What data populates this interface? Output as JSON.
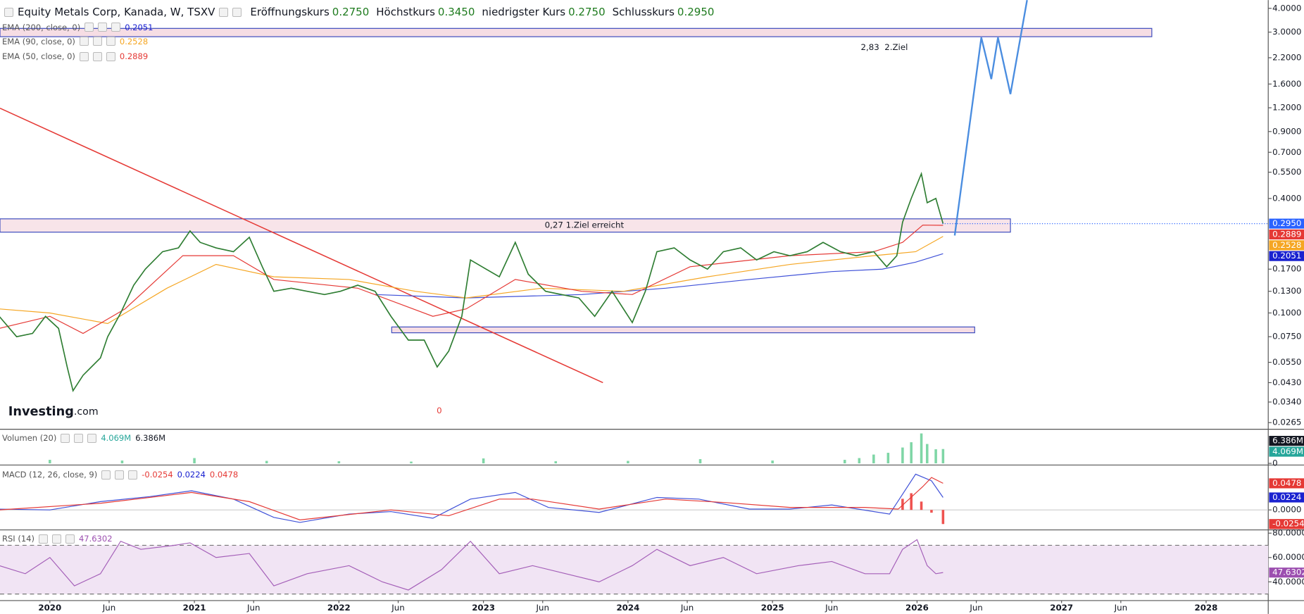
{
  "header": {
    "title": "Equity Metals Corp, Kanada, W, TSXV",
    "ohlc": [
      {
        "label": "Eröffnungskurs",
        "value": "0.2750"
      },
      {
        "label": "Höchstkurs",
        "value": "0.3450"
      },
      {
        "label": "niedrigster Kurs",
        "value": "0.2750"
      },
      {
        "label": "Schlusskurs",
        "value": "0.2950"
      }
    ],
    "logo": [
      "Investing",
      ".com"
    ]
  },
  "chart_data": [
    {
      "type": "line",
      "log_scale": true,
      "xlim": [
        2019.655,
        2028.43
      ],
      "xticks": [
        {
          "value": 2020,
          "label": "2020"
        },
        {
          "value": 2020.41,
          "label": "Jun"
        },
        {
          "value": 2021,
          "label": "2021"
        },
        {
          "value": 2021.41,
          "label": "Jun"
        },
        {
          "value": 2022,
          "label": "2022"
        },
        {
          "value": 2022.41,
          "label": "Jun"
        },
        {
          "value": 2023,
          "label": "2023"
        },
        {
          "value": 2023.41,
          "label": "Jun"
        },
        {
          "value": 2024,
          "label": "2024"
        },
        {
          "value": 2024.41,
          "label": "Jun"
        },
        {
          "value": 2025,
          "label": "2025"
        },
        {
          "value": 2025.41,
          "label": "Jun"
        },
        {
          "value": 2026,
          "label": "2026"
        },
        {
          "value": 2026.41,
          "label": "Jun"
        },
        {
          "value": 2027,
          "label": "2027"
        },
        {
          "value": 2027.41,
          "label": "Jun"
        },
        {
          "value": 2028,
          "label": "2028"
        }
      ],
      "ylim": [
        0.0247,
        4.42
      ],
      "yticks": [
        {
          "value": 4,
          "label": "4.0000"
        },
        {
          "value": 3,
          "label": "3.0000"
        },
        {
          "value": 2.2,
          "label": "2.2000"
        },
        {
          "value": 1.6,
          "label": "1.6000"
        },
        {
          "value": 1.2,
          "label": "1.2000"
        },
        {
          "value": 0.9,
          "label": "0.9000"
        },
        {
          "value": 0.7,
          "label": "0.7000"
        },
        {
          "value": 0.55,
          "label": "0.5500"
        },
        {
          "value": 0.4,
          "label": "0.4000"
        },
        {
          "value": 0.17,
          "label": "0.1700"
        },
        {
          "value": 0.13,
          "label": "0.1300"
        },
        {
          "value": 0.1,
          "label": "0.1000"
        },
        {
          "value": 0.075,
          "label": "0.0750"
        },
        {
          "value": 0.055,
          "label": "0.0550"
        },
        {
          "value": 0.043,
          "label": "0.0430"
        },
        {
          "value": 0.034,
          "label": "0.0340"
        },
        {
          "value": 0.0265,
          "label": "0.0265"
        }
      ],
      "legend": [
        {
          "title": "EMA (200, close, 0)",
          "values": [
            {
              "text": "0.2051",
              "color": "#1a22d0"
            }
          ]
        },
        {
          "title": "EMA (90, close, 0)",
          "values": [
            {
              "text": "0.2528",
              "color": "#f5a623"
            }
          ]
        },
        {
          "title": "EMA (50, close, 0)",
          "values": [
            {
              "text": "0.2889",
              "color": "#e53935"
            }
          ]
        }
      ],
      "series": [
        {
          "color": "#3f51d8",
          "x": [
            2022.25,
            2022.88,
            2023.68,
            2024.26,
            2024.84,
            2025.41,
            2025.76,
            2025.99,
            2026.18
          ],
          "values": [
            0.125,
            0.12,
            0.125,
            0.135,
            0.15,
            0.165,
            0.17,
            0.185,
            0.205
          ]
        },
        {
          "color": "#f5a623",
          "x": [
            2019.65,
            2020.0,
            2020.4,
            2020.81,
            2021.15,
            2021.55,
            2022.07,
            2022.53,
            2022.88,
            2023.4,
            2023.97,
            2024.55,
            2025.12,
            2025.7,
            2025.99,
            2026.18
          ],
          "values": [
            0.105,
            0.1,
            0.088,
            0.135,
            0.18,
            0.155,
            0.15,
            0.13,
            0.12,
            0.135,
            0.13,
            0.155,
            0.18,
            0.2,
            0.21,
            0.2528
          ]
        },
        {
          "color": "#e53935",
          "x": [
            2019.65,
            2020.0,
            2020.23,
            2020.52,
            2020.92,
            2021.27,
            2021.55,
            2022.13,
            2022.65,
            2022.88,
            2023.22,
            2023.68,
            2024.03,
            2024.43,
            2025.12,
            2025.7,
            2025.9,
            2026.04,
            2026.18
          ],
          "values": [
            0.083,
            0.096,
            0.078,
            0.105,
            0.2,
            0.2,
            0.15,
            0.135,
            0.096,
            0.105,
            0.15,
            0.13,
            0.125,
            0.175,
            0.2,
            0.21,
            0.235,
            0.29,
            0.2889
          ]
        },
        {
          "color": "#2e7d32",
          "x": [
            2019.65,
            2019.77,
            2019.88,
            2019.97,
            2020.06,
            2020.12,
            2020.16,
            2020.23,
            2020.35,
            2020.4,
            2020.49,
            2020.58,
            2020.66,
            2020.78,
            2020.89,
            2020.97,
            2021.04,
            2021.15,
            2021.27,
            2021.38,
            2021.47,
            2021.55,
            2021.67,
            2021.78,
            2021.9,
            2022.01,
            2022.13,
            2022.25,
            2022.36,
            2022.48,
            2022.59,
            2022.68,
            2022.76,
            2022.85,
            2022.91,
            2022.99,
            2023.11,
            2023.22,
            2023.31,
            2023.43,
            2023.54,
            2023.66,
            2023.77,
            2023.89,
            2024.03,
            2024.12,
            2024.2,
            2024.32,
            2024.43,
            2024.55,
            2024.66,
            2024.78,
            2024.89,
            2025.01,
            2025.12,
            2025.24,
            2025.35,
            2025.47,
            2025.58,
            2025.7,
            2025.79,
            2025.86,
            2025.9,
            2025.96,
            2026.03,
            2026.07,
            2026.13,
            2026.18
          ],
          "values": [
            0.096,
            0.075,
            0.078,
            0.096,
            0.083,
            0.052,
            0.039,
            0.047,
            0.058,
            0.075,
            0.1,
            0.14,
            0.17,
            0.21,
            0.22,
            0.27,
            0.235,
            0.22,
            0.21,
            0.25,
            0.175,
            0.13,
            0.135,
            0.13,
            0.125,
            0.13,
            0.14,
            0.13,
            0.096,
            0.072,
            0.072,
            0.052,
            0.063,
            0.096,
            0.19,
            0.175,
            0.155,
            0.235,
            0.16,
            0.13,
            0.125,
            0.12,
            0.096,
            0.13,
            0.089,
            0.13,
            0.21,
            0.22,
            0.19,
            0.17,
            0.21,
            0.22,
            0.19,
            0.21,
            0.2,
            0.21,
            0.235,
            0.21,
            0.2,
            0.21,
            0.175,
            0.2,
            0.3,
            0.4,
            0.54,
            0.38,
            0.4,
            0.295
          ]
        }
      ],
      "price_labels": [
        {
          "value": 0.295,
          "label": "0.2950",
          "color": "#2962ff",
          "dotted": true
        },
        {
          "value": 0.2889,
          "label": "0.2889",
          "color": "#e53935"
        },
        {
          "value": 0.2528,
          "label": "0.2528",
          "color": "#f5a623"
        },
        {
          "value": 0.2051,
          "label": "0.2051",
          "color": "#1a22d0"
        }
      ],
      "annotations": [
        "0,27 1.Ziel erreicht",
        "2,83  2.Ziel",
        "0"
      ]
    },
    {
      "type": "bar",
      "ylim": [
        0,
        9450000
      ],
      "yticks": [
        0
      ],
      "legend": [
        {
          "title": "Volumen (20)",
          "values": [
            {
              "text": "4.069M",
              "color": "#26a69a"
            },
            {
              "text": "6.386M",
              "color": "#131722"
            }
          ]
        }
      ],
      "series": [
        {
          "type": "bar",
          "color": "#7fd6a6",
          "x": [
            2020.0,
            2020.5,
            2021.0,
            2021.5,
            2022.0,
            2022.5,
            2023.0,
            2023.5,
            2024.0,
            2024.5,
            2025.0,
            2025.5,
            2025.6,
            2025.7,
            2025.8,
            2025.9,
            2025.96,
            2026.03,
            2026.07,
            2026.13,
            2026.18
          ],
          "values": [
            1000000,
            800000,
            1500000,
            700000,
            600000,
            500000,
            1400000,
            600000,
            700000,
            1200000,
            800000,
            1000000,
            1500000,
            2500000,
            3000000,
            4500000,
            6000000,
            8500000,
            5500000,
            4000000,
            4069000
          ]
        }
      ],
      "price_labels": [
        {
          "value": 6386000,
          "label": "6.386M",
          "color": "#131722"
        },
        {
          "value": 4069000,
          "label": "4.069M",
          "color": "#26a69a"
        }
      ]
    },
    {
      "type": "line",
      "ylim": [
        -0.0344,
        0.0792
      ],
      "yticks": [
        {
          "value": 0,
          "label": "0.0000"
        }
      ],
      "legend": [
        {
          "title": "MACD (12, 26, close, 9)",
          "values": [
            {
              "text": "-0.0254",
              "color": "#e53935"
            },
            {
              "text": "0.0224",
              "color": "#1a22d0"
            },
            {
              "text": "0.0478",
              "color": "#e53935"
            }
          ]
        }
      ],
      "series": [
        {
          "type": "bar",
          "color": "#ef5350",
          "x": [
            2025.9,
            2025.96,
            2026.03,
            2026.1,
            2026.18
          ],
          "values": [
            0.02,
            0.03,
            0.015,
            -0.005,
            -0.0254
          ]
        },
        {
          "color": "#3f51d8",
          "x": [
            2019.65,
            2020.0,
            2020.35,
            2020.69,
            2020.98,
            2021.27,
            2021.55,
            2021.73,
            2022.07,
            2022.36,
            2022.65,
            2022.91,
            2023.22,
            2023.45,
            2023.8,
            2024.2,
            2024.49,
            2024.84,
            2025.12,
            2025.41,
            2025.81,
            2025.99,
            2026.1,
            2026.18
          ],
          "values": [
            0.0015,
            0,
            0.0149,
            0.0239,
            0.0344,
            0.0194,
            -0.0135,
            -0.0224,
            -0.0075,
            -0.003,
            -0.0149,
            0.0194,
            0.0314,
            0.0045,
            -0.0045,
            0.0224,
            0.0194,
            0.0015,
            0.0015,
            0.009,
            -0.0075,
            0.0643,
            0.0523,
            0.0224
          ]
        },
        {
          "color": "#e53935",
          "x": [
            2019.65,
            2020.35,
            2020.98,
            2021.38,
            2021.73,
            2022.36,
            2022.76,
            2023.11,
            2023.34,
            2023.8,
            2024.26,
            2024.66,
            2025.12,
            2025.64,
            2025.87,
            2026.04,
            2026.1,
            2026.18
          ],
          "values": [
            0,
            0.012,
            0.0314,
            0.015,
            -0.0179,
            0,
            -0.0105,
            0.0194,
            0.0194,
            0.0015,
            0.0194,
            0.0135,
            0.0045,
            0.0045,
            0.0015,
            0.0419,
            0.0583,
            0.0478
          ]
        }
      ],
      "price_labels": [
        {
          "value": 0.0478,
          "label": "0.0478",
          "color": "#e53935"
        },
        {
          "value": 0.0224,
          "label": "0.0224",
          "color": "#1a22d0"
        },
        {
          "value": -0.0254,
          "label": "-0.0254",
          "color": "#e53935"
        }
      ]
    },
    {
      "type": "line",
      "ylim": [
        25.3,
        82
      ],
      "yticks": [
        {
          "value": 80,
          "label": "80.0000"
        },
        {
          "value": 60,
          "label": "60.0000"
        },
        {
          "value": 40,
          "label": "40.0000"
        }
      ],
      "band": [
        30,
        70
      ],
      "legend": [
        {
          "title": "RSI (14)",
          "values": [
            {
              "text": "47.6302",
              "color": "#9c4fb0"
            }
          ]
        }
      ],
      "series": [
        {
          "color": "#a45fb8",
          "x": [
            2019.65,
            2019.83,
            2020.0,
            2020.17,
            2020.35,
            2020.49,
            2020.63,
            2020.86,
            2020.97,
            2021.15,
            2021.38,
            2021.55,
            2021.78,
            2022.07,
            2022.3,
            2022.48,
            2022.71,
            2022.91,
            2023.11,
            2023.34,
            2023.57,
            2023.8,
            2024.03,
            2024.2,
            2024.43,
            2024.66,
            2024.89,
            2025.18,
            2025.41,
            2025.64,
            2025.81,
            2025.9,
            2026.0,
            2026.07,
            2026.13,
            2026.18
          ],
          "values": [
            53.3,
            46.7,
            60,
            36.7,
            46.7,
            73.3,
            66.7,
            70,
            72,
            60,
            63.3,
            36.7,
            46.7,
            53.3,
            40,
            33.3,
            50,
            73.3,
            46.7,
            53.3,
            46.7,
            40,
            53.3,
            66.7,
            53.3,
            60,
            46.7,
            53.3,
            56.7,
            46.7,
            46.7,
            66.7,
            74.7,
            53.3,
            46.7,
            47.6302
          ]
        }
      ],
      "price_labels": [
        {
          "value": 47.6302,
          "label": "47.6302",
          "color": "#9c4fb0"
        }
      ]
    }
  ]
}
